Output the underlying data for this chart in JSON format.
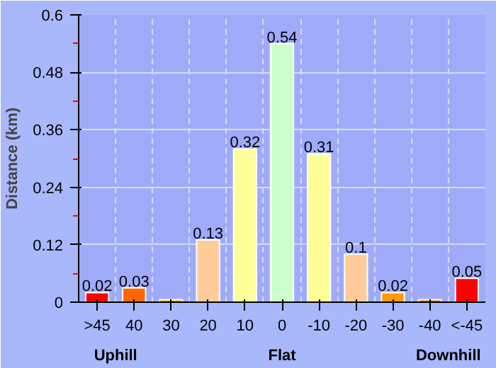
{
  "chart_data": {
    "type": "bar",
    "ylabel": "Distance (km)",
    "categories": [
      ">45",
      "40",
      "30",
      "20",
      "10",
      "0",
      "-10",
      "-20",
      "-30",
      "-40",
      "<-45"
    ],
    "values": [
      0.02,
      0.03,
      0.005,
      0.13,
      0.32,
      0.54,
      0.31,
      0.1,
      0.02,
      0.005,
      0.05
    ],
    "colors": [
      "#ff0000",
      "#ff6600",
      "#ff9900",
      "#ffcc99",
      "#ffff99",
      "#ccffcc",
      "#ffff99",
      "#ffcc99",
      "#ff9900",
      "#ff6600",
      "#ff0000"
    ],
    "value_labels": [
      "0.02",
      "0.03",
      null,
      "0.13",
      "0.32",
      "0.54",
      "0.31",
      "0.1",
      "0.02",
      null,
      "0.05"
    ],
    "ylim": [
      0,
      0.6
    ],
    "yticks": [
      0,
      0.12,
      0.24,
      0.36,
      0.48,
      0.6
    ],
    "grid": true,
    "annotations": [
      "Uphill",
      "Flat",
      "Downhill"
    ]
  }
}
